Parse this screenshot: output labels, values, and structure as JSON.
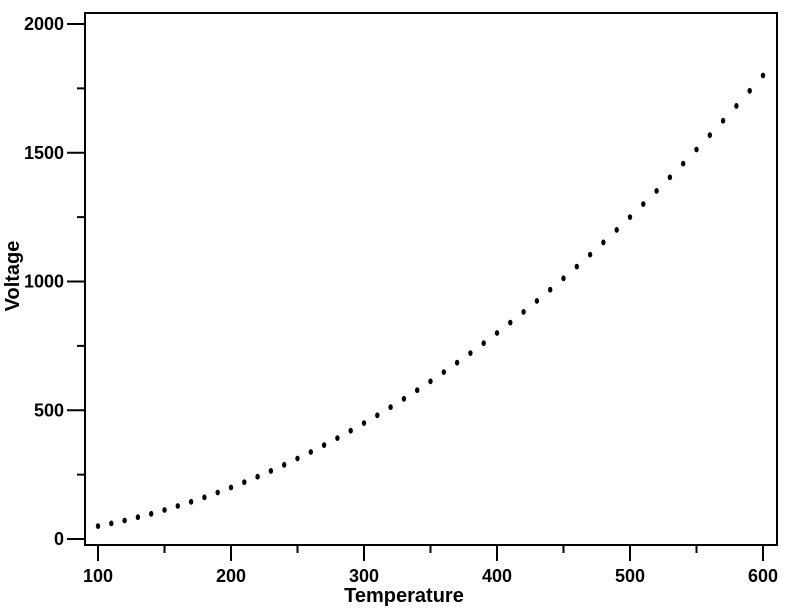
{
  "chart_data": {
    "type": "scatter",
    "title": "",
    "xlabel": "Temperature",
    "ylabel": "Voltage",
    "xlim": [
      100,
      600
    ],
    "ylim": [
      0,
      2000
    ],
    "x_ticks": [
      100,
      200,
      300,
      400,
      500,
      600
    ],
    "x_minor_ticks": [
      150,
      250,
      350,
      450,
      550
    ],
    "y_ticks": [
      0,
      500,
      1000,
      1500,
      2000
    ],
    "y_minor_ticks": [
      250,
      750,
      1250,
      1750
    ],
    "grid": false,
    "legend": null,
    "background_color": "#ffffff",
    "axis_color": "#000000",
    "marker": {
      "shape": "dot",
      "color": "#000000"
    },
    "x": [
      100,
      110,
      120,
      130,
      140,
      150,
      160,
      170,
      180,
      190,
      200,
      210,
      220,
      230,
      240,
      250,
      260,
      270,
      280,
      290,
      300,
      310,
      320,
      330,
      340,
      350,
      360,
      370,
      380,
      390,
      400,
      410,
      420,
      430,
      440,
      450,
      460,
      470,
      480,
      490,
      500,
      510,
      520,
      530,
      540,
      550,
      560,
      570,
      580,
      590,
      600
    ],
    "y": [
      50,
      60.5,
      72,
      84.5,
      98,
      112.5,
      128,
      144.5,
      162,
      180.5,
      200,
      220.5,
      242,
      264.5,
      288,
      312.5,
      338,
      364.5,
      392,
      420.5,
      450,
      480.5,
      512,
      544.5,
      578,
      612.5,
      648,
      684.5,
      722,
      760.5,
      800,
      840.5,
      882,
      924.5,
      968,
      1012.5,
      1058,
      1104.5,
      1152,
      1200.5,
      1250,
      1300.5,
      1352,
      1404.5,
      1458,
      1512.5,
      1568,
      1624.5,
      1682,
      1740.5,
      1800
    ]
  }
}
